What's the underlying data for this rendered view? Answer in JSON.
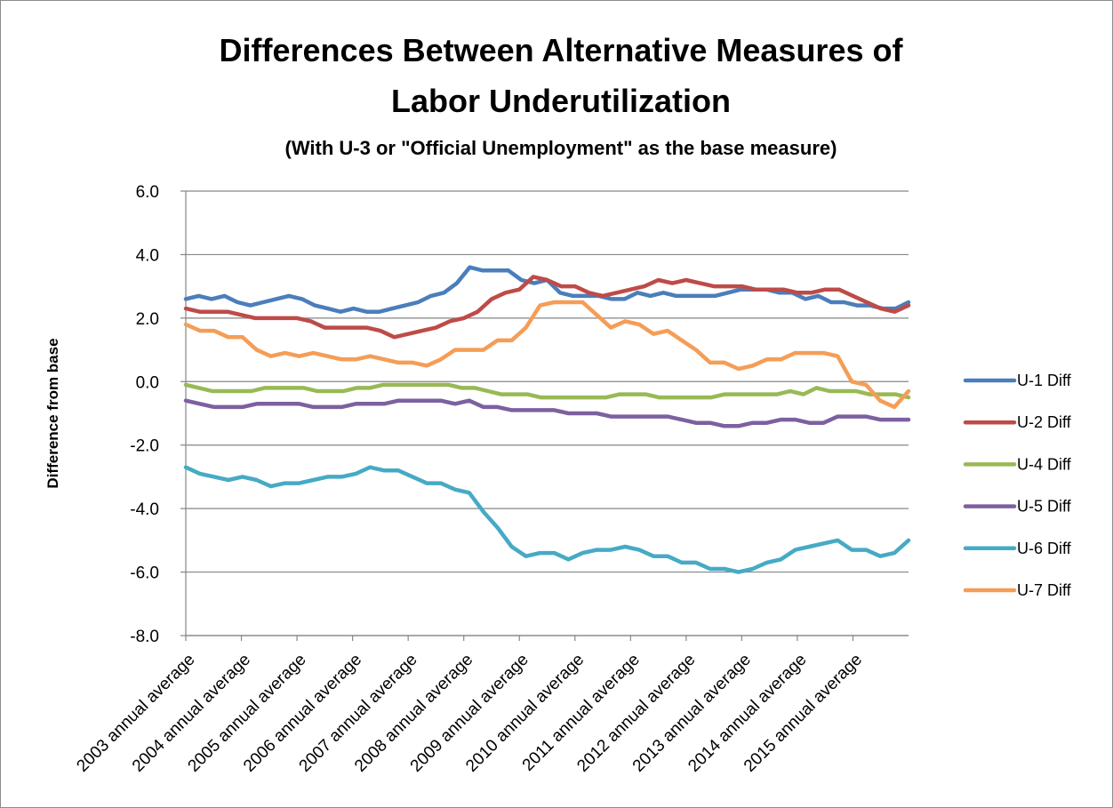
{
  "chart_data": {
    "type": "line",
    "title": "Differences Between Alternative Measures of Labor Underutilization",
    "title_lines": [
      "Differences Between Alternative Measures of",
      "Labor Underutilization"
    ],
    "subtitle": "(With U-3 or \"Official Unemployment\" as the base measure)",
    "xlabel": "",
    "ylabel": "Difference from base",
    "ylim": [
      -8,
      6
    ],
    "yticks": [
      6,
      4,
      2,
      0,
      -2,
      -4,
      -6,
      -8
    ],
    "ytick_labels": [
      "6.0",
      "4.0",
      "2.0",
      "0.0",
      "-2.0",
      "-4.0",
      "-6.0",
      "-8.0"
    ],
    "grid": true,
    "legend_position": "right",
    "x_tick_labels": [
      "2003 annual average",
      "2004 annual average",
      "2005 annual average",
      "2006 annual average",
      "2007 annual average",
      "2008 annual average",
      "2009 annual average",
      "2010 annual average",
      "2011 annual average",
      "2012 annual average",
      "2013 annual average",
      "2014 annual average",
      "2015 annual average"
    ],
    "x_tick_indices": [
      0,
      5,
      10,
      15,
      20,
      25,
      30,
      35,
      40,
      45,
      50,
      55,
      60
    ],
    "num_points": 66,
    "series": [
      {
        "name": "U-1 Diff",
        "color": "#4a7ebb",
        "values": [
          2.6,
          2.7,
          2.6,
          2.7,
          2.5,
          2.4,
          2.5,
          2.6,
          2.7,
          2.6,
          2.4,
          2.3,
          2.2,
          2.3,
          2.2,
          2.2,
          2.3,
          2.4,
          2.5,
          2.7,
          2.8,
          3.1,
          3.6,
          3.5,
          3.5,
          3.5,
          3.2,
          3.1,
          3.2,
          2.8,
          2.7,
          2.7,
          2.7,
          2.6,
          2.6,
          2.8,
          2.7,
          2.8,
          2.7,
          2.7,
          2.7,
          2.7,
          2.8,
          2.9,
          2.9,
          2.9,
          2.8,
          2.8,
          2.6,
          2.7,
          2.5,
          2.5,
          2.4,
          2.4,
          2.3,
          2.3,
          2.5
        ]
      },
      {
        "name": "U-2 Diff",
        "color": "#be4b48",
        "values": [
          2.3,
          2.2,
          2.2,
          2.2,
          2.1,
          2.0,
          2.0,
          2.0,
          2.0,
          1.9,
          1.7,
          1.7,
          1.7,
          1.7,
          1.6,
          1.4,
          1.5,
          1.6,
          1.7,
          1.9,
          2.0,
          2.2,
          2.6,
          2.8,
          2.9,
          3.3,
          3.2,
          3.0,
          3.0,
          2.8,
          2.7,
          2.8,
          2.9,
          3.0,
          3.2,
          3.1,
          3.2,
          3.1,
          3.0,
          3.0,
          3.0,
          2.9,
          2.9,
          2.9,
          2.8,
          2.8,
          2.9,
          2.9,
          2.7,
          2.5,
          2.3,
          2.2,
          2.4
        ]
      },
      {
        "name": "U-4 Diff",
        "color": "#98b954",
        "values": [
          -0.1,
          -0.2,
          -0.3,
          -0.3,
          -0.3,
          -0.3,
          -0.2,
          -0.2,
          -0.2,
          -0.2,
          -0.3,
          -0.3,
          -0.3,
          -0.2,
          -0.2,
          -0.1,
          -0.1,
          -0.1,
          -0.1,
          -0.1,
          -0.1,
          -0.2,
          -0.2,
          -0.3,
          -0.4,
          -0.4,
          -0.4,
          -0.5,
          -0.5,
          -0.5,
          -0.5,
          -0.5,
          -0.5,
          -0.4,
          -0.4,
          -0.4,
          -0.5,
          -0.5,
          -0.5,
          -0.5,
          -0.5,
          -0.4,
          -0.4,
          -0.4,
          -0.4,
          -0.4,
          -0.3,
          -0.4,
          -0.2,
          -0.3,
          -0.3,
          -0.3,
          -0.4,
          -0.4,
          -0.4,
          -0.5
        ]
      },
      {
        "name": "U-5 Diff",
        "color": "#7d60a0",
        "values": [
          -0.6,
          -0.7,
          -0.8,
          -0.8,
          -0.8,
          -0.7,
          -0.7,
          -0.7,
          -0.7,
          -0.8,
          -0.8,
          -0.8,
          -0.7,
          -0.7,
          -0.7,
          -0.6,
          -0.6,
          -0.6,
          -0.6,
          -0.7,
          -0.6,
          -0.8,
          -0.8,
          -0.9,
          -0.9,
          -0.9,
          -0.9,
          -1.0,
          -1.0,
          -1.0,
          -1.1,
          -1.1,
          -1.1,
          -1.1,
          -1.1,
          -1.2,
          -1.3,
          -1.3,
          -1.4,
          -1.4,
          -1.3,
          -1.3,
          -1.2,
          -1.2,
          -1.3,
          -1.3,
          -1.1,
          -1.1,
          -1.1,
          -1.2,
          -1.2,
          -1.2
        ]
      },
      {
        "name": "U-6 Diff",
        "color": "#46aac5",
        "values": [
          -2.7,
          -2.9,
          -3.0,
          -3.1,
          -3.0,
          -3.1,
          -3.3,
          -3.2,
          -3.2,
          -3.1,
          -3.0,
          -3.0,
          -2.9,
          -2.7,
          -2.8,
          -2.8,
          -3.0,
          -3.2,
          -3.2,
          -3.4,
          -3.5,
          -4.1,
          -4.6,
          -5.2,
          -5.5,
          -5.4,
          -5.4,
          -5.6,
          -5.4,
          -5.3,
          -5.3,
          -5.2,
          -5.3,
          -5.5,
          -5.5,
          -5.7,
          -5.7,
          -5.9,
          -5.9,
          -6.0,
          -5.9,
          -5.7,
          -5.6,
          -5.3,
          -5.2,
          -5.1,
          -5.0,
          -5.3,
          -5.3,
          -5.5,
          -5.4,
          -5.0
        ]
      },
      {
        "name": "U-7 Diff",
        "color": "#f59d56",
        "values": [
          1.8,
          1.6,
          1.6,
          1.4,
          1.4,
          1.0,
          0.8,
          0.9,
          0.8,
          0.9,
          0.8,
          0.7,
          0.7,
          0.8,
          0.7,
          0.6,
          0.6,
          0.5,
          0.7,
          1.0,
          1.0,
          1.0,
          1.3,
          1.3,
          1.7,
          2.4,
          2.5,
          2.5,
          2.5,
          2.1,
          1.7,
          1.9,
          1.8,
          1.5,
          1.6,
          1.3,
          1.0,
          0.6,
          0.6,
          0.4,
          0.5,
          0.7,
          0.7,
          0.9,
          0.9,
          0.9,
          0.8,
          0.0,
          -0.1,
          -0.6,
          -0.8,
          -0.3
        ]
      }
    ]
  }
}
